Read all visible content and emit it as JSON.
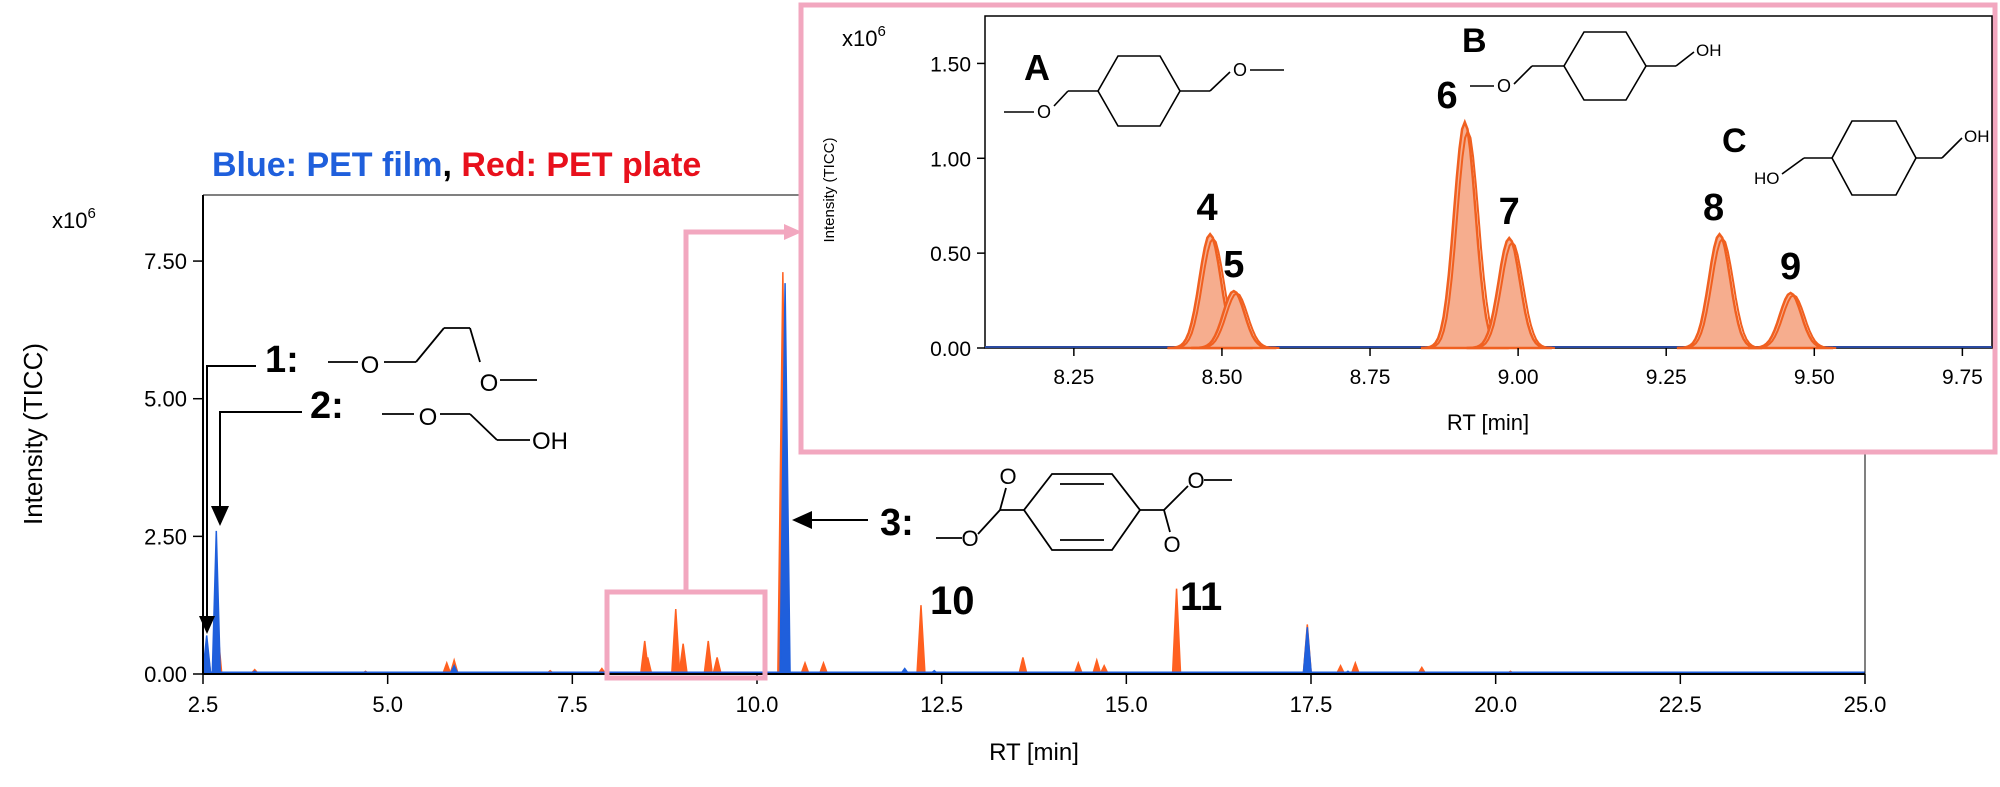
{
  "legend_title": {
    "blue_part": "Blue: PET film",
    "separator": ", ",
    "red_part": "Red: PET plate"
  },
  "colors": {
    "blue": "#1f5fdc",
    "red": "#ff6020",
    "red_fill": "#f7b090",
    "inset_line": "#f06020",
    "inset_fill": "#f6ad8e",
    "highlight_box": "#f2a7bf",
    "axis": "#000000"
  },
  "chart_data": [
    {
      "type": "line",
      "name": "main",
      "xlabel": "RT [min]",
      "ylabel": "Intensity (TICC)",
      "multiplier": "x10",
      "multiplier_exp": "6",
      "xlim": [
        2.5,
        25.0
      ],
      "ylim": [
        0,
        8.7
      ],
      "xticks": [
        "2.5",
        "5.0",
        "7.5",
        "10.0",
        "12.5",
        "15.0",
        "17.5",
        "20.0",
        "22.5",
        "25.0"
      ],
      "yticks": [
        "0.00",
        "2.50",
        "5.00",
        "7.50"
      ],
      "grid": false,
      "series": [
        {
          "name": "PET film",
          "color": "blue",
          "peaks": [
            [
              2.55,
              0.7
            ],
            [
              2.68,
              2.6
            ],
            [
              3.2,
              0.05
            ],
            [
              4.7,
              0.04
            ],
            [
              5.9,
              0.15
            ],
            [
              10.38,
              7.1
            ],
            [
              12.0,
              0.1
            ],
            [
              12.4,
              0.06
            ],
            [
              17.45,
              0.85
            ],
            [
              18.0,
              0.05
            ]
          ]
        },
        {
          "name": "PET plate",
          "color": "red",
          "peaks": [
            [
              2.55,
              0.6
            ],
            [
              2.7,
              0.8
            ],
            [
              3.2,
              0.08
            ],
            [
              4.7,
              0.05
            ],
            [
              5.8,
              0.2
            ],
            [
              5.9,
              0.25
            ],
            [
              7.2,
              0.06
            ],
            [
              7.9,
              0.1
            ],
            [
              8.48,
              0.6
            ],
            [
              8.52,
              0.3
            ],
            [
              8.9,
              1.18
            ],
            [
              9.0,
              0.55
            ],
            [
              9.34,
              0.6
            ],
            [
              9.46,
              0.3
            ],
            [
              10.35,
              7.3
            ],
            [
              10.65,
              0.2
            ],
            [
              10.9,
              0.2
            ],
            [
              12.22,
              1.25
            ],
            [
              13.6,
              0.3
            ],
            [
              14.35,
              0.2
            ],
            [
              14.6,
              0.25
            ],
            [
              14.7,
              0.15
            ],
            [
              15.68,
              1.55
            ],
            [
              17.45,
              0.9
            ],
            [
              17.9,
              0.15
            ],
            [
              18.1,
              0.2
            ],
            [
              19.0,
              0.12
            ],
            [
              20.2,
              0.05
            ]
          ]
        }
      ],
      "annotations": [
        {
          "label": "1:",
          "structure": "dimethoxyethane"
        },
        {
          "label": "2:",
          "structure": "methoxyethanol",
          "text": "OH"
        },
        {
          "label": "3:",
          "structure": "dimethyl terephthalate"
        },
        {
          "label": "10",
          "x": 12.22,
          "y": 1.25
        },
        {
          "label": "11",
          "x": 15.68,
          "y": 1.55
        }
      ],
      "atoms": {
        "o": "O",
        "oh": "OH"
      }
    },
    {
      "type": "area",
      "name": "inset",
      "xlabel": "RT [min]",
      "ylabel": "Intensity (TICC)",
      "multiplier": "x10",
      "multiplier_exp": "6",
      "xlim": [
        8.1,
        9.8
      ],
      "ylim": [
        0,
        1.75
      ],
      "xticks": [
        "8.25",
        "8.50",
        "8.75",
        "9.00",
        "9.25",
        "9.50",
        "9.75"
      ],
      "yticks": [
        "0.00",
        "0.50",
        "1.00",
        "1.50"
      ],
      "grid": false,
      "series": [
        {
          "name": "PET plate",
          "peaks": [
            [
              8.48,
              0.6
            ],
            [
              8.52,
              0.3
            ],
            [
              8.91,
              1.19
            ],
            [
              8.985,
              0.58
            ],
            [
              9.34,
              0.6
            ],
            [
              9.46,
              0.29
            ]
          ]
        }
      ],
      "peak_labels": [
        {
          "label": "4",
          "x": 8.475,
          "y": 0.6
        },
        {
          "label": "5",
          "x": 8.52,
          "y": 0.3
        },
        {
          "label": "6",
          "x": 8.88,
          "y": 1.19
        },
        {
          "label": "7",
          "x": 8.985,
          "y": 0.58
        },
        {
          "label": "8",
          "x": 9.33,
          "y": 0.6
        },
        {
          "label": "9",
          "x": 9.46,
          "y": 0.29
        }
      ],
      "structure_labels": [
        "A",
        "B",
        "C"
      ],
      "atoms": {
        "o": "O",
        "oh": "OH",
        "ho": "HO"
      }
    }
  ]
}
